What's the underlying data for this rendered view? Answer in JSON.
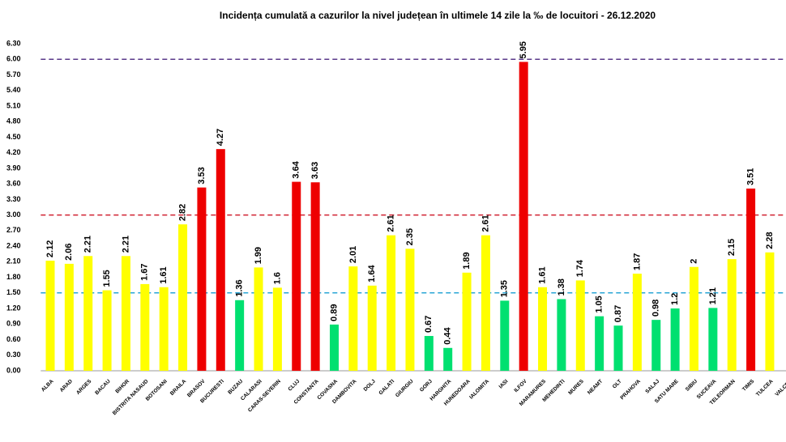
{
  "chart_data": {
    "type": "bar",
    "title": "Incidența cumulată a cazurilor la nivel județean în ultimele 14 zile la ‰ de locuitori - 26.12.2020",
    "categories": [
      "ALBA",
      "ARAD",
      "ARGES",
      "BACAU",
      "BIHOR",
      "BISTRITA NASAUD",
      "BOTOSANI",
      "BRAILA",
      "BRASOV",
      "BUCURESTI",
      "BUZAU",
      "CALARASI",
      "CARAS-SEVERIN",
      "CLUJ",
      "CONSTANTA",
      "COVASNA",
      "DAMBOVITA",
      "DOLJ",
      "GALATI",
      "GIURGIU",
      "GORJ",
      "HARGHITA",
      "HUNEDOARA",
      "IALOMITA",
      "IASI",
      "ILFOV",
      "MARAMURES",
      "MEHEDINTI",
      "MURES",
      "NEAMT",
      "OLT",
      "PRAHOVA",
      "SALAJ",
      "SATU MARE",
      "SIBIU",
      "SUCEAVA",
      "TELEORMAN",
      "TIMIS",
      "TULCEA",
      "VALCEA"
    ],
    "values": [
      2.12,
      2.06,
      2.21,
      1.55,
      2.21,
      1.67,
      1.61,
      2.82,
      3.53,
      4.27,
      1.36,
      1.99,
      1.6,
      3.64,
      3.63,
      0.89,
      2.01,
      1.64,
      2.61,
      2.35,
      0.67,
      0.44,
      1.89,
      2.61,
      1.35,
      5.95,
      1.61,
      1.38,
      1.74,
      1.05,
      0.87,
      1.87,
      0.98,
      1.2,
      2,
      1.21,
      2.15,
      3.51,
      2.28,
      null
    ],
    "colors": [
      "#ffff00",
      "#ffff00",
      "#ffff00",
      "#ffff00",
      "#ffff00",
      "#ffff00",
      "#ffff00",
      "#ffff00",
      "#ee0000",
      "#ee0000",
      "#00e070",
      "#ffff00",
      "#ffff00",
      "#ee0000",
      "#ee0000",
      "#00e070",
      "#ffff00",
      "#ffff00",
      "#ffff00",
      "#ffff00",
      "#00e070",
      "#00e070",
      "#ffff00",
      "#ffff00",
      "#00e070",
      "#ee0000",
      "#ffff00",
      "#00e070",
      "#ffff00",
      "#00e070",
      "#00e070",
      "#ffff00",
      "#00e070",
      "#00e070",
      "#ffff00",
      "#00e070",
      "#ffff00",
      "#ee0000",
      "#ffff00",
      null
    ],
    "ylim": [
      0,
      6.3
    ],
    "yticks": [
      {
        "value": 0,
        "label": "0.00"
      },
      {
        "value": 0.3,
        "label": "0.30"
      },
      {
        "value": 0.6,
        "label": "0.60"
      },
      {
        "value": 0.9,
        "label": "0.90"
      },
      {
        "value": 1.2,
        "label": "1.20"
      },
      {
        "value": 1.5,
        "label": "1.50"
      },
      {
        "value": 1.8,
        "label": "1.80"
      },
      {
        "value": 2.1,
        "label": "2.10"
      },
      {
        "value": 2.4,
        "label": "2.40"
      },
      {
        "value": 2.7,
        "label": "2.70"
      },
      {
        "value": 3.0,
        "label": "3.00"
      },
      {
        "value": 3.3,
        "label": "3.30"
      },
      {
        "value": 3.6,
        "label": "3.60"
      },
      {
        "value": 3.9,
        "label": "3.90"
      },
      {
        "value": 4.2,
        "label": "4.20"
      },
      {
        "value": 4.5,
        "label": "4.50"
      },
      {
        "value": 4.8,
        "label": "4.80"
      },
      {
        "value": 5.1,
        "label": "5.10"
      },
      {
        "value": 5.4,
        "label": "5.40"
      },
      {
        "value": 5.7,
        "label": "5.70"
      },
      {
        "value": 6.0,
        "label": "6.00"
      },
      {
        "value": 6.3,
        "label": "6.30"
      }
    ],
    "reference_lines": [
      {
        "value": 1.5,
        "color": "#2aa6d6"
      },
      {
        "value": 3.0,
        "color": "#d02030"
      },
      {
        "value": 6.0,
        "color": "#5a3a8a"
      }
    ],
    "grid": false
  }
}
